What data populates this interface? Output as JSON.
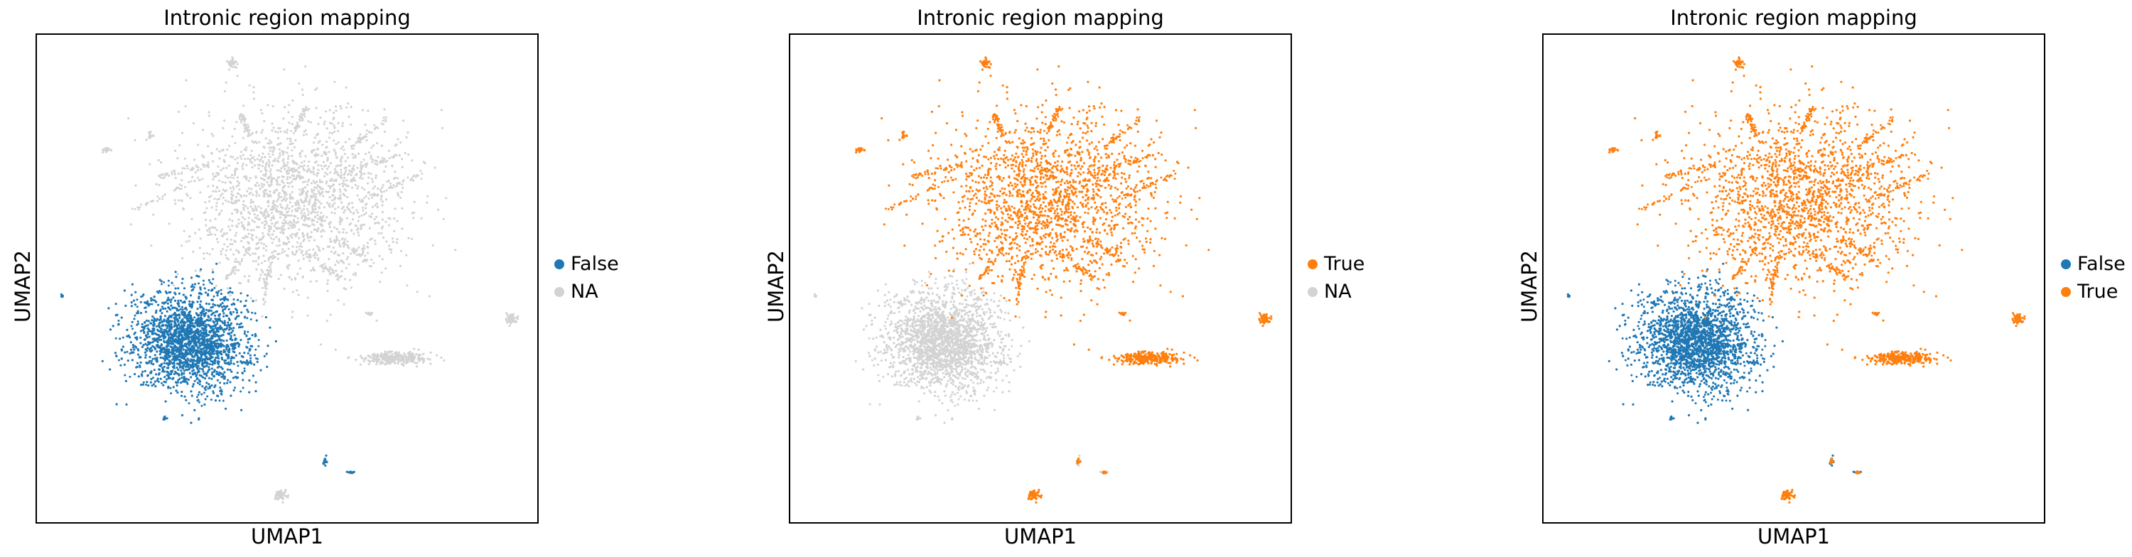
{
  "colors": {
    "False": "#1f77b4",
    "True": "#ff7f0e",
    "NA": "#d3d3d3"
  },
  "chart_data": [
    {
      "type": "scatter",
      "title": "Intronic region mapping",
      "xlabel": "UMAP1",
      "ylabel": "UMAP2",
      "legend": [
        "False",
        "NA"
      ],
      "legend_position": "right",
      "grid": false,
      "series": [
        {
          "name": "NA",
          "clusters": [
            "big_top",
            "small_top",
            "left_small_a",
            "left_small_b",
            "right_strip",
            "right_small",
            "right_edge",
            "bottom_small",
            "bottom_a",
            "bottom_b"
          ]
        },
        {
          "name": "False",
          "clusters": [
            "blue_blob",
            "blue_left_dot",
            "blue_small_a",
            "blue_small_b",
            "blue_pair_a",
            "blue_pair_b"
          ]
        }
      ]
    },
    {
      "type": "scatter",
      "title": "Intronic region mapping",
      "xlabel": "UMAP1",
      "ylabel": "UMAP2",
      "legend": [
        "True",
        "NA"
      ],
      "legend_position": "right",
      "grid": false,
      "series": [
        {
          "name": "NA",
          "clusters": [
            "blue_blob",
            "blue_left_dot",
            "blue_small_a",
            "blue_small_b",
            "blue_pair_a",
            "blue_pair_b"
          ]
        },
        {
          "name": "True",
          "clusters": [
            "big_top",
            "small_top",
            "left_small_a",
            "left_small_b",
            "right_strip",
            "right_small",
            "right_edge",
            "bottom_small",
            "bottom_a",
            "bottom_b"
          ]
        }
      ]
    },
    {
      "type": "scatter",
      "title": "Intronic region mapping",
      "xlabel": "UMAP1",
      "ylabel": "UMAP2",
      "legend": [
        "False",
        "True"
      ],
      "legend_position": "right",
      "grid": false,
      "series": [
        {
          "name": "False",
          "clusters": [
            "blue_blob",
            "blue_left_dot",
            "blue_small_a",
            "blue_small_b",
            "blue_pair_a",
            "blue_pair_b"
          ]
        },
        {
          "name": "True",
          "clusters": [
            "big_top",
            "small_top",
            "left_small_a",
            "left_small_b",
            "right_strip",
            "right_small",
            "right_edge",
            "bottom_small",
            "bottom_a",
            "bottom_b"
          ]
        }
      ]
    }
  ]
}
